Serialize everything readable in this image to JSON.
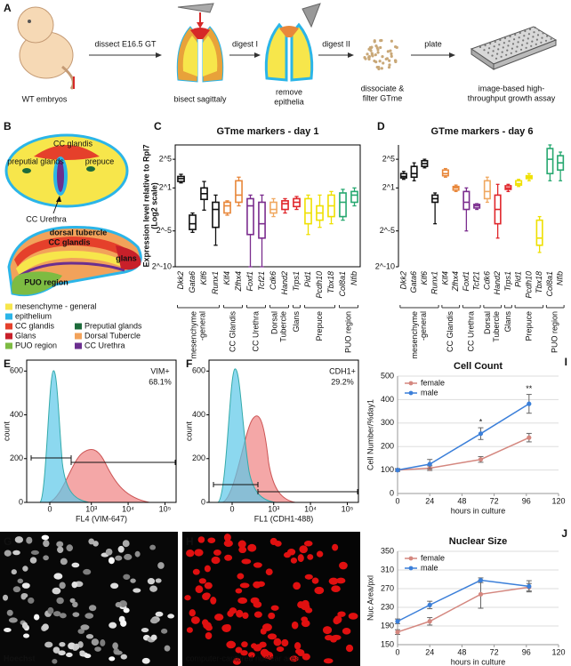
{
  "panels": {
    "a": {
      "letter": "A",
      "stages": [
        [
          "WT embryos"
        ],
        [
          "bisect sagittaly"
        ],
        [
          "remove",
          "epithelia"
        ],
        [
          "dissociate &",
          "filter GTme"
        ],
        [
          "image-based high-",
          "throughput growth assay"
        ]
      ],
      "steps": [
        "dissect E16.5 GT",
        "digest I",
        "digest II",
        "plate"
      ]
    },
    "b": {
      "letter": "B",
      "top_labels": [
        "CC glandis",
        "preputial glands",
        "prepuce",
        "CC Urethra"
      ],
      "side_labels": [
        "dorsal tubercle",
        "CC glandis",
        "glans",
        "PUO region"
      ],
      "legend": [
        {
          "name": "mesenchyme - general",
          "color": "#f7e64b"
        },
        {
          "name": "epithelium",
          "color": "#2bb5e8"
        },
        {
          "name": "CC glandis",
          "color": "#e5402b"
        },
        {
          "name": "Glans",
          "color": "#c8202a"
        },
        {
          "name": "PUO region",
          "color": "#7dbb42"
        },
        {
          "name": "Preputial glands",
          "color": "#1d6b3b"
        },
        {
          "name": "Dorsal Tubercle",
          "color": "#f2a25a"
        },
        {
          "name": "CC Urethra",
          "color": "#6b2f8f"
        }
      ]
    },
    "g": {
      "letter": "G",
      "caption": "Hoechst"
    },
    "h": {
      "letter": "H",
      "caption": "computer-captured nuclear area"
    }
  },
  "chart_data": [
    {
      "type": "box",
      "letter": "C",
      "title": "GTme markers - day 1",
      "y_label": [
        "Expression level relative to Rpl7",
        "(Log2 scale)"
      ],
      "frame": true,
      "ylim": [
        -10,
        7
      ],
      "yticks": [
        {
          "value": 5,
          "label": "2^5"
        },
        {
          "value": 1,
          "label": "2^1"
        },
        {
          "value": -5,
          "label": "2^-5"
        },
        {
          "value": -10,
          "label": "2^-10"
        }
      ],
      "groups": [
        {
          "label": [
            "mesenchyme",
            "-general"
          ],
          "genes": [
            {
              "name": "Dkk2",
              "color": "#111111",
              "min": 1.7,
              "q1": 1.9,
              "median": 2.3,
              "q3": 2.6,
              "max": 2.9
            },
            {
              "name": "Gata6",
              "color": "#111111",
              "min": -5.2,
              "q1": -4.8,
              "median": -4,
              "q3": -2.8,
              "max": -2.5
            },
            {
              "name": "Klf6",
              "color": "#111111",
              "min": -2.1,
              "q1": -0.6,
              "median": 0.2,
              "q3": 1,
              "max": 1.9
            },
            {
              "name": "Runx1",
              "color": "#111111",
              "min": -7,
              "q1": -4.5,
              "median": -2,
              "q3": -1,
              "max": 0
            }
          ]
        },
        {
          "label": [
            "CC Glandis"
          ],
          "genes": [
            {
              "name": "Klf4",
              "color": "#e8873a",
              "min": -2.8,
              "q1": -2.5,
              "median": -1.5,
              "q3": -1,
              "max": -0.8
            },
            {
              "name": "Zfhx4",
              "color": "#e8873a",
              "min": -1.5,
              "q1": -1,
              "median": 0,
              "q3": 2,
              "max": 2.5
            }
          ]
        },
        {
          "label": [
            "CC Urethra"
          ],
          "genes": [
            {
              "name": "Foxf1",
              "color": "#7b2d8e",
              "min": -10,
              "q1": -5.5,
              "median": -1.5,
              "q3": -0.5,
              "max": 0
            },
            {
              "name": "Tcf21",
              "color": "#7b2d8e",
              "min": -10,
              "q1": -6,
              "median": -4,
              "q3": -1,
              "max": 0
            }
          ]
        },
        {
          "label": [
            "Dorsal",
            "Tubercle"
          ],
          "genes": [
            {
              "name": "Cdk6",
              "color": "#f0a860",
              "min": -3,
              "q1": -2.5,
              "median": -2,
              "q3": -1,
              "max": -0.5
            },
            {
              "name": "Hand2",
              "color": "#e0262b",
              "min": -2.5,
              "q1": -2,
              "median": -1.2,
              "q3": -0.8,
              "max": -0.5
            }
          ]
        },
        {
          "label": [
            "Glans"
          ],
          "genes": [
            {
              "name": "Trps1",
              "color": "#e0262b",
              "min": -2,
              "q1": -1.6,
              "median": -1,
              "q3": -0.5,
              "max": -0.2
            }
          ]
        },
        {
          "label": [
            "Prepuce"
          ],
          "genes": [
            {
              "name": "Pid1",
              "color": "#efe000",
              "min": -5.5,
              "q1": -4,
              "median": -2.5,
              "q3": -0.5,
              "max": 0
            },
            {
              "name": "Pcdh10",
              "color": "#efe000",
              "min": -4.5,
              "q1": -3.5,
              "median": -2.5,
              "q3": -1.5,
              "max": 0
            },
            {
              "name": "Tbx18",
              "color": "#efe000",
              "min": -4,
              "q1": -3,
              "median": -1.5,
              "q3": 0,
              "max": 0.5
            }
          ]
        },
        {
          "label": [
            "PUO region"
          ],
          "genes": [
            {
              "name": "Col8a1",
              "color": "#27a870",
              "min": -3.5,
              "q1": -3,
              "median": -1,
              "q3": 0.3,
              "max": 0.8
            },
            {
              "name": "Nfib",
              "color": "#27a870",
              "min": -1.5,
              "q1": -1,
              "median": 0,
              "q3": 0.5,
              "max": 1
            }
          ]
        }
      ]
    },
    {
      "type": "box",
      "letter": "D",
      "title": "GTme markers - day 6",
      "frame": false,
      "ylim": [
        -10,
        7
      ],
      "yticks": [
        {
          "value": 5,
          "label": "2^5"
        },
        {
          "value": 1,
          "label": "2^1"
        },
        {
          "value": -5,
          "label": "2^-5"
        },
        {
          "value": -10,
          "label": "2^-10"
        }
      ],
      "groups": [
        {
          "label": [
            "mesenchyme",
            "-general"
          ],
          "genes": [
            {
              "name": "Dkk2",
              "color": "#111111",
              "min": 2.2,
              "q1": 2.4,
              "median": 2.6,
              "q3": 3,
              "max": 3.3
            },
            {
              "name": "Gata6",
              "color": "#111111",
              "min": 2,
              "q1": 2.5,
              "median": 3,
              "q3": 4,
              "max": 4.5
            },
            {
              "name": "Klf6",
              "color": "#111111",
              "min": 3.8,
              "q1": 4,
              "median": 4.4,
              "q3": 4.8,
              "max": 5
            },
            {
              "name": "Runx1",
              "color": "#111111",
              "min": -4,
              "q1": -1,
              "median": -0.5,
              "q3": 0,
              "max": 0.3
            }
          ]
        },
        {
          "label": [
            "CC Glandis"
          ],
          "genes": [
            {
              "name": "Klf4",
              "color": "#e8873a",
              "min": 2.5,
              "q1": 2.7,
              "median": 3,
              "q3": 3.5,
              "max": 3.7
            },
            {
              "name": "Zfhx4",
              "color": "#e8873a",
              "min": 0.5,
              "q1": 0.7,
              "median": 1,
              "q3": 1.2,
              "max": 1.4
            }
          ]
        },
        {
          "label": [
            "CC Urethra"
          ],
          "genes": [
            {
              "name": "Foxf1",
              "color": "#7b2d8e",
              "min": -5,
              "q1": -2,
              "median": -1,
              "q3": 0.5,
              "max": 1
            },
            {
              "name": "Tcf21",
              "color": "#7b2d8e",
              "min": -2,
              "q1": -1.8,
              "median": -1.5,
              "q3": -1.3,
              "max": -1.2
            }
          ]
        },
        {
          "label": [
            "Dorsal",
            "Tubercle"
          ],
          "genes": [
            {
              "name": "Cdk6",
              "color": "#f0a860",
              "min": -1,
              "q1": -0.5,
              "median": 0.5,
              "q3": 2,
              "max": 2.5
            },
            {
              "name": "Hand2",
              "color": "#e0262b",
              "min": -6,
              "q1": -4,
              "median": -2,
              "q3": 0,
              "max": 1.5
            }
          ]
        },
        {
          "label": [
            "Glans"
          ],
          "genes": [
            {
              "name": "Trps1",
              "color": "#e0262b",
              "min": 0.5,
              "q1": 0.8,
              "median": 1,
              "q3": 1.3,
              "max": 1.5
            }
          ]
        },
        {
          "label": [
            "Prepuce"
          ],
          "genes": [
            {
              "name": "Pid1",
              "color": "#efe000",
              "min": 1.2,
              "q1": 1.4,
              "median": 1.6,
              "q3": 2,
              "max": 2.2
            },
            {
              "name": "Pcdh10",
              "color": "#efe000",
              "min": 2,
              "q1": 2.3,
              "median": 2.5,
              "q3": 2.7,
              "max": 3
            },
            {
              "name": "Tbx18",
              "color": "#efe000",
              "min": -8,
              "q1": -7,
              "median": -6,
              "q3": -3.5,
              "max": -3
            }
          ]
        },
        {
          "label": [
            "PUO region"
          ],
          "genes": [
            {
              "name": "Col8a1",
              "color": "#27a870",
              "min": 2,
              "q1": 3,
              "median": 5,
              "q3": 6.5,
              "max": 7
            },
            {
              "name": "Nfib",
              "color": "#27a870",
              "min": 2,
              "q1": 3.5,
              "median": 4.5,
              "q3": 5.5,
              "max": 6
            }
          ]
        }
      ]
    },
    {
      "type": "flow",
      "letter": "E",
      "annotations": [
        "VIM+",
        "68.1%"
      ],
      "y_label": "count",
      "x_label": "FL4 (VIM-647)",
      "xscale": "biexponential",
      "xlim": [
        -300,
        200000
      ],
      "xticks": [
        {
          "value": 0,
          "label": "0"
        },
        {
          "value": 1000,
          "label": "10³"
        },
        {
          "value": 10000,
          "label": "10⁴"
        },
        {
          "value": 100000,
          "label": "10⁵"
        }
      ],
      "ylim": [
        0,
        650
      ],
      "yticks": [
        0,
        200,
        400,
        600
      ]
    },
    {
      "type": "flow",
      "letter": "F",
      "annotations": [
        "CDH1+",
        "29.2%"
      ],
      "y_label": "count",
      "x_label": "FL1 (CDH1-488)",
      "xscale": "biexponential",
      "xlim": [
        -300,
        200000
      ],
      "xticks": [
        {
          "value": 0,
          "label": "0"
        },
        {
          "value": 1000,
          "label": "10³"
        },
        {
          "value": 10000,
          "label": "10⁴"
        },
        {
          "value": 100000,
          "label": "10⁵"
        }
      ],
      "ylim": [
        0,
        650
      ],
      "yticks": [
        0,
        200,
        400,
        600
      ]
    },
    {
      "type": "line",
      "letter": "I",
      "title": "Cell Count",
      "y_label": "Cell Number/%day1",
      "x_label": "hours in culture",
      "grid": true,
      "legend": "top-left",
      "xlim": [
        0,
        120
      ],
      "xticks": [
        0,
        24,
        48,
        72,
        96,
        120
      ],
      "ylim": [
        0,
        500
      ],
      "yticks": [
        0,
        100,
        200,
        300,
        400,
        500
      ],
      "series": [
        {
          "name": "female",
          "color": "#d4877f",
          "x": [
            0,
            24,
            62,
            98
          ],
          "values": [
            100,
            108,
            145,
            238
          ],
          "errors": [
            5,
            10,
            12,
            18
          ]
        },
        {
          "name": "male",
          "color": "#3b7fd9",
          "x": [
            0,
            24,
            62,
            98
          ],
          "values": [
            100,
            125,
            255,
            382
          ],
          "errors": [
            6,
            20,
            25,
            40
          ],
          "markers": [
            null,
            null,
            "*",
            "**"
          ]
        }
      ]
    },
    {
      "type": "line",
      "letter": "J",
      "title": "Nuclear Size",
      "y_label": "Nuc Area/pxl",
      "x_label": "hours in culture",
      "grid": true,
      "legend": "top-left",
      "xlim": [
        0,
        120
      ],
      "xticks": [
        0,
        24,
        48,
        72,
        96,
        120
      ],
      "ylim": [
        150,
        350
      ],
      "yticks": [
        150,
        190,
        230,
        270,
        310,
        350
      ],
      "series": [
        {
          "name": "female",
          "color": "#d4877f",
          "x": [
            0,
            24,
            62,
            98
          ],
          "values": [
            177,
            200,
            258,
            273
          ],
          "errors": [
            5,
            8,
            30,
            8
          ]
        },
        {
          "name": "male",
          "color": "#3b7fd9",
          "x": [
            0,
            24,
            62,
            98
          ],
          "values": [
            200,
            235,
            288,
            275
          ],
          "errors": [
            5,
            8,
            5,
            12
          ]
        }
      ]
    }
  ]
}
